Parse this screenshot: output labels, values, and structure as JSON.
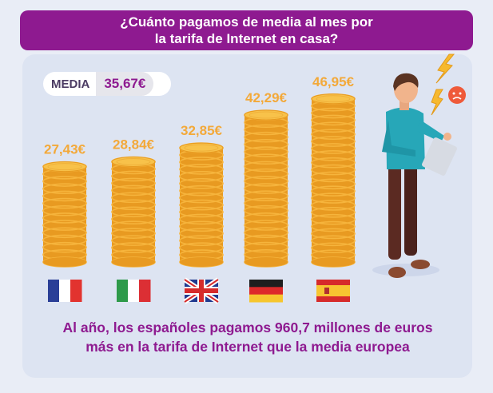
{
  "title": {
    "line1": "¿Cuánto pagamos de media al mes por",
    "line2": "la tarifa de Internet en casa?"
  },
  "media": {
    "label": "MEDIA",
    "value": "35,67€"
  },
  "footer": {
    "line1": "Al año, los españoles pagamos 960,7 millones de euros",
    "line2": "más en la tarifa de Internet que la media europea"
  },
  "colors": {
    "title_bg": "#8e1a90",
    "value_text": "#f3a93a",
    "coin_face": "#f8c24a",
    "coin_edge": "#e89a21",
    "footer_text": "#8e1a90"
  },
  "chart_data": {
    "type": "bar",
    "categories": [
      "Francia",
      "Italia",
      "Reino Unido",
      "Alemania",
      "España"
    ],
    "values": [
      27.43,
      28.84,
      32.85,
      42.29,
      46.95
    ],
    "value_labels": [
      "27,43€",
      "28,84€",
      "32,85€",
      "42,29€",
      "46,95€"
    ],
    "flags": [
      "france-flag",
      "italy-flag",
      "uk-flag",
      "germany-flag",
      "spain-flag"
    ],
    "mean": 35.67,
    "unit": "€",
    "ylim": [
      0,
      50
    ]
  }
}
